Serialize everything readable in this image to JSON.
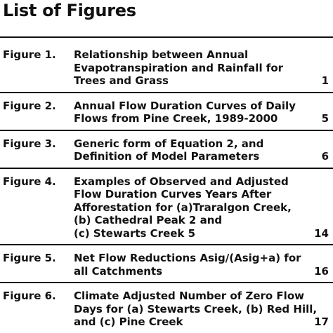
{
  "heading": "List of Figures",
  "figures": [
    {
      "label": "Figure 1.",
      "lines": [
        "Relationship between Annual",
        "Evapotranspiration and Rainfall for",
        "Trees and Grass"
      ],
      "page": "1"
    },
    {
      "label": "Figure 2.",
      "lines": [
        "Annual Flow Duration Curves of Daily",
        "Flows from Pine Creek, 1989-2000"
      ],
      "page": "5"
    },
    {
      "label": "Figure 3.",
      "lines": [
        "Generic form of Equation 2, and",
        "Definition of Model Parameters"
      ],
      "page": "6"
    },
    {
      "label": "Figure 4.",
      "lines": [
        "Examples of Observed and Adjusted",
        "Flow Duration Curves Years After",
        "Afforestation for (a)Traralgon Creek,",
        "(b) Cathedral Peak 2 and",
        "(c) Stewarts Creek 5"
      ],
      "page": "14"
    },
    {
      "label": "Figure 5.",
      "lines": [
        "Net Flow Reductions Asig/(Asig+a) for",
        "all Catchments"
      ],
      "page": "16"
    },
    {
      "label": "Figure 6.",
      "lines": [
        "Climate Adjusted Number of Zero Flow",
        "Days for (a) Stewarts Creek, (b) Red Hill,",
        "and (c) Pine Creek"
      ],
      "page": "17"
    }
  ]
}
